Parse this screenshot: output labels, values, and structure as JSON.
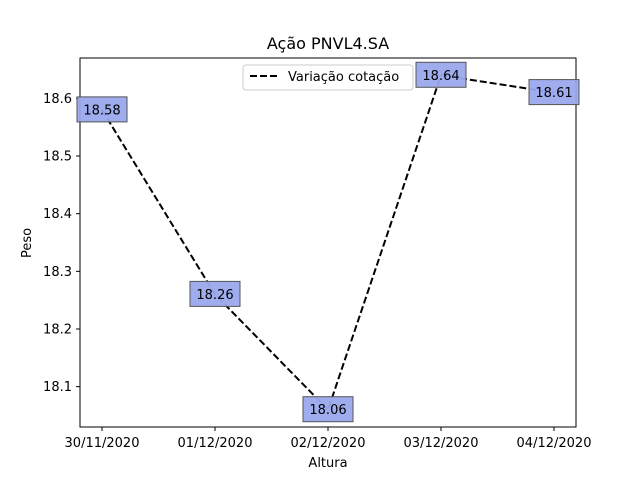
{
  "chart_data": {
    "type": "line",
    "title": "Ação PNVL4.SA",
    "xlabel": "Altura",
    "ylabel": "Peso",
    "categories": [
      "30/11/2020",
      "01/12/2020",
      "02/12/2020",
      "03/12/2020",
      "04/12/2020"
    ],
    "series": [
      {
        "name": "Variação cotação",
        "values": [
          18.58,
          18.26,
          18.06,
          18.64,
          18.61
        ],
        "labels": [
          "18.58",
          "18.26",
          "18.06",
          "18.64",
          "18.61"
        ],
        "color": "#000000",
        "line_style": "dashed"
      }
    ],
    "yticks": [
      18.1,
      18.2,
      18.3,
      18.4,
      18.5,
      18.6
    ],
    "ytick_labels": [
      "18.1",
      "18.2",
      "18.3",
      "18.4",
      "18.5",
      "18.6"
    ],
    "ylim": [
      18.03,
      18.67
    ],
    "grid": false,
    "legend_position": "top-center",
    "label_box_color": "#9aa9ee"
  }
}
